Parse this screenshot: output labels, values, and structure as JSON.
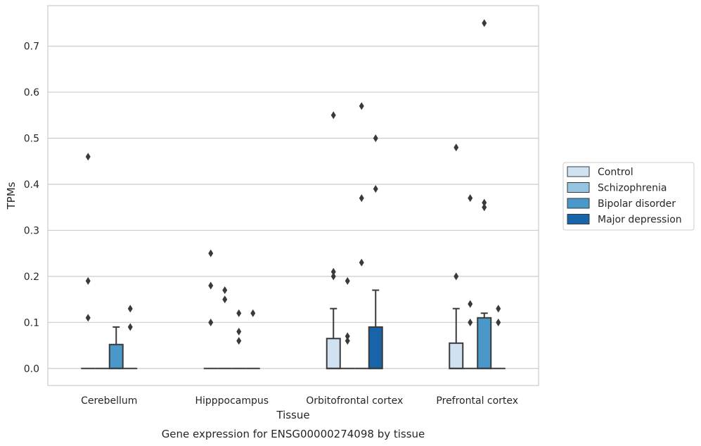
{
  "chart_data": {
    "type": "box",
    "caption": "Gene expression for ENSG00000274098 by tissue",
    "xlabel": "Tissue",
    "ylabel": "TPMs",
    "ylim": [
      -0.037,
      0.788
    ],
    "yticks": [
      0.0,
      0.1,
      0.2,
      0.3,
      0.4,
      0.5,
      0.6,
      0.7
    ],
    "ytick_labels": [
      "0.0",
      "0.1",
      "0.2",
      "0.3",
      "0.4",
      "0.5",
      "0.6",
      "0.7"
    ],
    "grid": "horizontal",
    "legend_placement": "outside-right",
    "categories": [
      "Cerebellum",
      "Hipppocampus",
      "Orbitofrontal cortex",
      "Prefrontal cortex"
    ],
    "series": [
      {
        "name": "Control",
        "color": "#d0e1f2",
        "boxes": [
          {
            "q1": 0,
            "median": 0,
            "q3": 0,
            "whisker_low": 0,
            "whisker_high": 0,
            "outliers": [
              0.46,
              0.19,
              0.11
            ]
          },
          {
            "q1": 0,
            "median": 0,
            "q3": 0,
            "whisker_low": 0,
            "whisker_high": 0,
            "outliers": [
              0.25,
              0.18,
              0.1
            ]
          },
          {
            "q1": 0,
            "median": 0,
            "q3": 0.065,
            "whisker_low": 0,
            "whisker_high": 0.13,
            "outliers": [
              0.55,
              0.21,
              0.2
            ]
          },
          {
            "q1": 0,
            "median": 0,
            "q3": 0.055,
            "whisker_low": 0,
            "whisker_high": 0.13,
            "outliers": [
              0.48,
              0.2
            ]
          }
        ]
      },
      {
        "name": "Schizophrenia",
        "color": "#94c4df",
        "boxes": [
          {
            "q1": 0,
            "median": 0,
            "q3": 0,
            "whisker_low": 0,
            "whisker_high": 0,
            "outliers": []
          },
          {
            "q1": 0,
            "median": 0,
            "q3": 0,
            "whisker_low": 0,
            "whisker_high": 0,
            "outliers": [
              0.17,
              0.15
            ]
          },
          {
            "q1": 0,
            "median": 0,
            "q3": 0,
            "whisker_low": 0,
            "whisker_high": 0,
            "outliers": [
              0.19,
              0.07,
              0.06
            ]
          },
          {
            "q1": 0,
            "median": 0,
            "q3": 0,
            "whisker_low": 0,
            "whisker_high": 0,
            "outliers": [
              0.37,
              0.14,
              0.1
            ]
          }
        ]
      },
      {
        "name": "Bipolar disorder",
        "color": "#4a98c9",
        "boxes": [
          {
            "q1": 0,
            "median": 0,
            "q3": 0.052,
            "whisker_low": 0,
            "whisker_high": 0.09,
            "outliers": []
          },
          {
            "q1": 0,
            "median": 0,
            "q3": 0,
            "whisker_low": 0,
            "whisker_high": 0,
            "outliers": [
              0.12,
              0.08,
              0.06
            ]
          },
          {
            "q1": 0,
            "median": 0,
            "q3": 0,
            "whisker_low": 0,
            "whisker_high": 0,
            "outliers": [
              0.57,
              0.37,
              0.23
            ]
          },
          {
            "q1": 0,
            "median": 0,
            "q3": 0.11,
            "whisker_low": 0,
            "whisker_high": 0.12,
            "outliers": [
              0.75,
              0.36,
              0.35
            ]
          }
        ]
      },
      {
        "name": "Major depression",
        "color": "#1764ab",
        "boxes": [
          {
            "q1": 0,
            "median": 0,
            "q3": 0,
            "whisker_low": 0,
            "whisker_high": 0,
            "outliers": [
              0.13,
              0.09
            ]
          },
          {
            "q1": 0,
            "median": 0,
            "q3": 0,
            "whisker_low": 0,
            "whisker_high": 0,
            "outliers": [
              0.12
            ]
          },
          {
            "q1": 0,
            "median": 0,
            "q3": 0.09,
            "whisker_low": 0,
            "whisker_high": 0.17,
            "outliers": [
              0.5,
              0.39
            ]
          },
          {
            "q1": 0,
            "median": 0,
            "q3": 0,
            "whisker_low": 0,
            "whisker_high": 0,
            "outliers": [
              0.13,
              0.1
            ]
          }
        ]
      }
    ]
  }
}
